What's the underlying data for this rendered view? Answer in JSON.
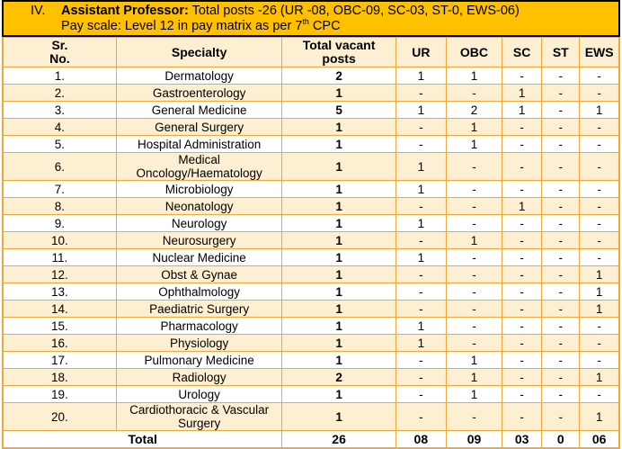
{
  "title": {
    "index": "IV.",
    "heading": "Assistant Professor:",
    "summary": " Total posts -26 (UR -08, OBC-09, SC-03, ST-0, EWS-06)",
    "pay_scale_prefix": "Pay scale: Level 12 in pay matrix as per 7",
    "pay_scale_sup": "th",
    "pay_scale_suffix": " CPC"
  },
  "colors": {
    "title_band": "#FFC000",
    "row_stripe": "#FDEFD2",
    "grid_line": "#F0A73E",
    "title_border": "#000000",
    "text": "#000000"
  },
  "table": {
    "headers": [
      {
        "id": "sr-no",
        "lines": [
          "Sr.",
          "No."
        ]
      },
      {
        "id": "specialty",
        "lines": [
          "Specialty"
        ]
      },
      {
        "id": "total",
        "lines": [
          "Total vacant",
          "posts"
        ]
      },
      {
        "id": "ur",
        "lines": [
          "UR"
        ]
      },
      {
        "id": "obc",
        "lines": [
          "OBC"
        ]
      },
      {
        "id": "sc",
        "lines": [
          "SC"
        ]
      },
      {
        "id": "st",
        "lines": [
          "ST"
        ]
      },
      {
        "id": "ews",
        "lines": [
          "EWS"
        ]
      }
    ],
    "rows": [
      {
        "sr": "1.",
        "specialty": "Dermatology",
        "total": "2",
        "ur": "1",
        "obc": "1",
        "sc": "-",
        "st": "-",
        "ews": "-"
      },
      {
        "sr": "2.",
        "specialty": "Gastroenterology",
        "total": "1",
        "ur": "-",
        "obc": "-",
        "sc": "1",
        "st": "-",
        "ews": "-"
      },
      {
        "sr": "3.",
        "specialty": "General Medicine",
        "total": "5",
        "ur": "1",
        "obc": "2",
        "sc": "1",
        "st": "-",
        "ews": "1"
      },
      {
        "sr": "4.",
        "specialty": "General Surgery",
        "total": "1",
        "ur": "-",
        "obc": "1",
        "sc": "-",
        "st": "-",
        "ews": "-"
      },
      {
        "sr": "5.",
        "specialty": "Hospital Administration",
        "total": "1",
        "ur": "-",
        "obc": "1",
        "sc": "-",
        "st": "-",
        "ews": "-"
      },
      {
        "sr": "6.",
        "specialty": "Medical Oncology/Haematology",
        "total": "1",
        "ur": "1",
        "obc": "-",
        "sc": "-",
        "st": "-",
        "ews": "-"
      },
      {
        "sr": "7.",
        "specialty": "Microbiology",
        "total": "1",
        "ur": "1",
        "obc": "-",
        "sc": "-",
        "st": "-",
        "ews": "-"
      },
      {
        "sr": "8.",
        "specialty": "Neonatology",
        "total": "1",
        "ur": "-",
        "obc": "-",
        "sc": "1",
        "st": "-",
        "ews": "-"
      },
      {
        "sr": "9.",
        "specialty": "Neurology",
        "total": "1",
        "ur": "1",
        "obc": "-",
        "sc": "-",
        "st": "-",
        "ews": "-"
      },
      {
        "sr": "10.",
        "specialty": "Neurosurgery",
        "total": "1",
        "ur": "-",
        "obc": "1",
        "sc": "-",
        "st": "-",
        "ews": "-"
      },
      {
        "sr": "11.",
        "specialty": "Nuclear Medicine",
        "total": "1",
        "ur": "1",
        "obc": "-",
        "sc": "-",
        "st": "-",
        "ews": "-"
      },
      {
        "sr": "12.",
        "specialty": "Obst & Gynae",
        "total": "1",
        "ur": "-",
        "obc": "-",
        "sc": "-",
        "st": "-",
        "ews": "1"
      },
      {
        "sr": "13.",
        "specialty": "Ophthalmology",
        "total": "1",
        "ur": "-",
        "obc": "-",
        "sc": "-",
        "st": "-",
        "ews": "1"
      },
      {
        "sr": "14.",
        "specialty": "Paediatric Surgery",
        "total": "1",
        "ur": "-",
        "obc": "-",
        "sc": "-",
        "st": "-",
        "ews": "1"
      },
      {
        "sr": "15.",
        "specialty": "Pharmacology",
        "total": "1",
        "ur": "1",
        "obc": "-",
        "sc": "-",
        "st": "-",
        "ews": "-"
      },
      {
        "sr": "16.",
        "specialty": "Physiology",
        "total": "1",
        "ur": "1",
        "obc": "-",
        "sc": "-",
        "st": "-",
        "ews": "-"
      },
      {
        "sr": "17.",
        "specialty": "Pulmonary Medicine",
        "total": "1",
        "ur": "-",
        "obc": "1",
        "sc": "-",
        "st": "-",
        "ews": "-"
      },
      {
        "sr": "18.",
        "specialty": "Radiology",
        "total": "2",
        "ur": "-",
        "obc": "1",
        "sc": "-",
        "st": "-",
        "ews": "1"
      },
      {
        "sr": "19.",
        "specialty": "Urology",
        "total": "1",
        "ur": "-",
        "obc": "1",
        "sc": "-",
        "st": "-",
        "ews": "-"
      },
      {
        "sr": "20.",
        "specialty": "Cardiothoracic & Vascular Surgery",
        "total": "1",
        "ur": "-",
        "obc": "-",
        "sc": "-",
        "st": "-",
        "ews": "1"
      }
    ],
    "total_row": {
      "label": "Total",
      "total": "26",
      "ur": "08",
      "obc": "09",
      "sc": "03",
      "st": "0",
      "ews": "06"
    }
  }
}
